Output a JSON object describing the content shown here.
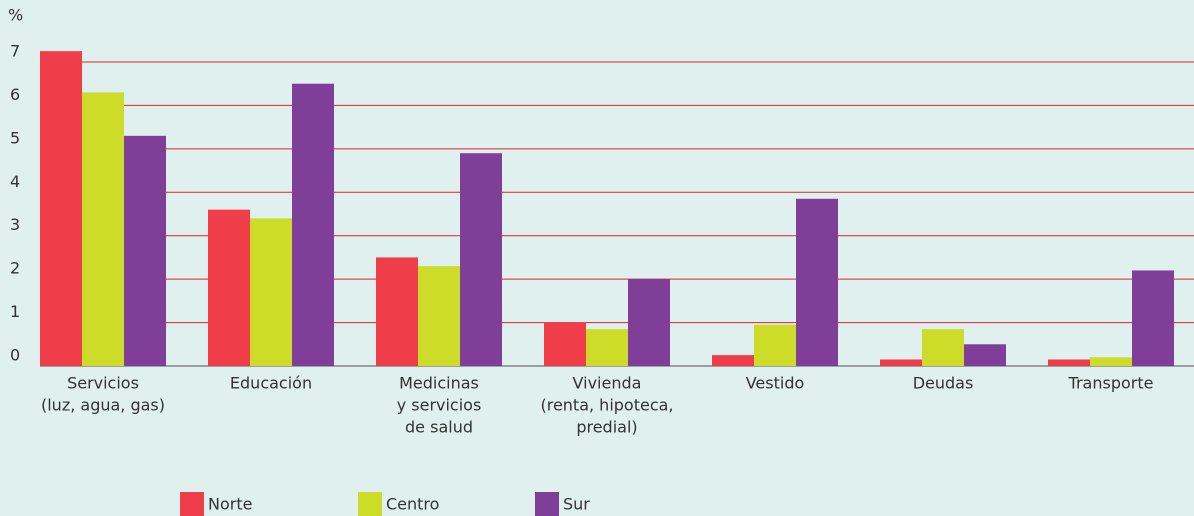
{
  "chart_data": {
    "type": "bar",
    "y_label": "%",
    "categories": [
      [
        "Servicios",
        "(luz, agua, gas)"
      ],
      [
        "Educación"
      ],
      [
        "Medicinas",
        "y servicios",
        "de salud"
      ],
      [
        "Vivienda",
        "(renta, hipoteca,",
        "predial)"
      ],
      [
        "Vestido"
      ],
      [
        "Deudas"
      ],
      [
        "Transporte"
      ]
    ],
    "series": [
      {
        "name": "Norte",
        "color": "#ef3e4a",
        "values": [
          7.25,
          3.6,
          2.5,
          1.0,
          0.25,
          0.15,
          0.15
        ]
      },
      {
        "name": "Centro",
        "color": "#cddc29",
        "values": [
          6.3,
          3.4,
          2.3,
          0.85,
          0.95,
          0.85,
          0.2
        ]
      },
      {
        "name": "Sur",
        "color": "#7f3f98",
        "values": [
          5.3,
          6.5,
          4.9,
          2.0,
          3.85,
          0.5,
          2.2
        ]
      }
    ],
    "ylim": [
      0,
      7
    ],
    "yticks": [
      0,
      1,
      2,
      3,
      4,
      5,
      6,
      7
    ],
    "grid": true,
    "legend": "bottom"
  }
}
